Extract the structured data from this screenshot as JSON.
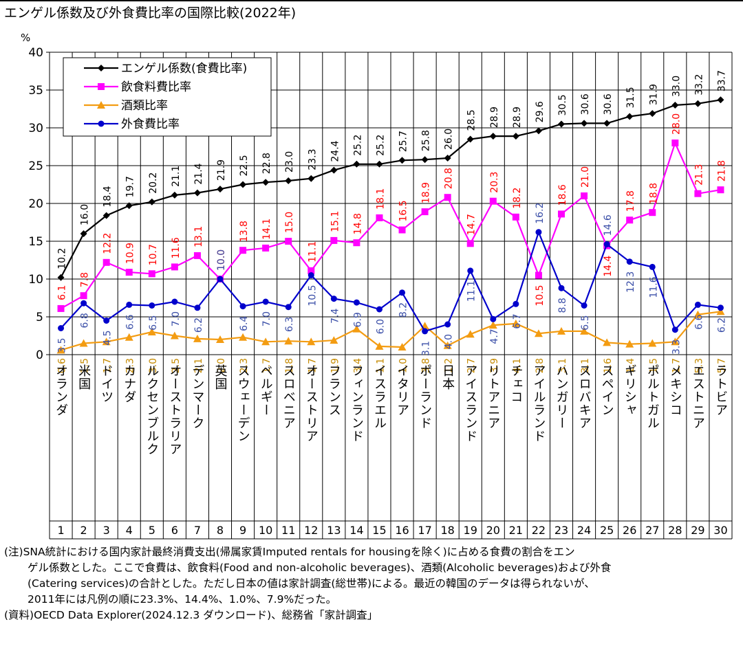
{
  "chart_data": {
    "type": "line",
    "title": "エンゲル係数及び外食費比率の国際比較(2022年)",
    "ylabel": "%",
    "ylim": [
      0,
      40
    ],
    "yticks": [
      0,
      5,
      10,
      15,
      20,
      25,
      30,
      35,
      40
    ],
    "grid": true,
    "legend_position": "top-left",
    "categories": [
      "オランダ",
      "米国",
      "ドイツ",
      "カナダ",
      "ルクセンブルク",
      "オーストラリア",
      "デンマーク",
      "英国",
      "スウェーデン",
      "ベルギー",
      "スロベニア",
      "オーストリア",
      "フランス",
      "フィンランド",
      "イスラエル",
      "イタリア",
      "ポーランド",
      "日本",
      "アイスランド",
      "リトアニア",
      "チェコ",
      "アイルランド",
      "ハンガリー",
      "スロバキア",
      "スペイン",
      "ギリシャ",
      "ポルトガル",
      "メキシコ",
      "エストニア",
      "ラトビア"
    ],
    "ranks": [
      "1",
      "2",
      "3",
      "4",
      "5",
      "6",
      "7",
      "8",
      "9",
      "10",
      "11",
      "12",
      "13",
      "14",
      "15",
      "16",
      "17",
      "18",
      "19",
      "20",
      "21",
      "22",
      "23",
      "24",
      "25",
      "26",
      "27",
      "28",
      "29",
      "30"
    ],
    "series": [
      {
        "name": "エンゲル係数(食費比率)",
        "color": "#000000",
        "marker": "diamond",
        "values": [
          10.2,
          16.0,
          18.4,
          19.7,
          20.2,
          21.1,
          21.4,
          21.9,
          22.5,
          22.8,
          23.0,
          23.3,
          24.4,
          25.2,
          25.2,
          25.7,
          25.8,
          26.0,
          28.5,
          28.9,
          28.9,
          29.6,
          30.5,
          30.6,
          30.6,
          31.5,
          31.9,
          33.0,
          33.2,
          33.7
        ],
        "labels": [
          "10.2",
          "16.0",
          "18.4",
          "19.7",
          "20.2",
          "21.1",
          "21.4",
          "21.9",
          "22.5",
          "22.8",
          "23.0",
          "23.3",
          "24.4",
          "25.2",
          "25.2",
          "25.7",
          "25.8",
          "26.0",
          "28.5",
          "28.9",
          "28.9",
          "29.6",
          "30.5",
          "30.6",
          "30.6",
          "31.5",
          "31.9",
          "33.0",
          "33.2",
          "33.7"
        ]
      },
      {
        "name": "飲食料費比率",
        "color": "#ff00ff",
        "label_color": "#ff0000",
        "marker": "square",
        "values": [
          6.1,
          7.8,
          12.2,
          10.9,
          10.7,
          11.6,
          13.1,
          10.0,
          13.8,
          14.1,
          15.0,
          11.1,
          15.1,
          14.8,
          18.1,
          16.5,
          18.9,
          20.8,
          14.7,
          20.3,
          18.2,
          10.5,
          18.6,
          21.0,
          14.4,
          17.8,
          18.8,
          28.0,
          21.3,
          21.8
        ],
        "labels": [
          "6.1",
          "7.8",
          "12.2",
          "10.9",
          "10.7",
          "11.6",
          "13.1",
          "10.0",
          "13.8",
          "14.1",
          "15.0",
          "11.1",
          "15.1",
          "14.8",
          "18.1",
          "16.5",
          "18.9",
          "20.8",
          "14.7",
          "20.3",
          "18.2",
          "10.5",
          "18.6",
          "21.0",
          "14.4",
          "17.8",
          "18.8",
          "28.0",
          "21.3",
          "21.8"
        ]
      },
      {
        "name": "酒類比率",
        "color": "#f39c12",
        "label_color": "#c58a00",
        "marker": "triangle",
        "values": [
          0.6,
          1.5,
          1.7,
          2.3,
          3.0,
          2.5,
          2.1,
          2.0,
          2.3,
          1.7,
          1.8,
          1.7,
          1.9,
          3.4,
          1.1,
          1.0,
          3.8,
          1.2,
          2.7,
          3.9,
          4.1,
          2.8,
          3.1,
          3.1,
          1.6,
          1.4,
          1.5,
          1.7,
          5.3,
          5.7
        ],
        "labels": [
          "0.6",
          "1.5",
          "1.7",
          "2.3",
          "3.0",
          "2.5",
          "2.1",
          "2.0",
          "2.3",
          "1.7",
          "1.8",
          "1.7",
          "1.9",
          "3.4",
          "1.1",
          "1.0",
          "3.8",
          "1.2",
          "2.7",
          "3.9",
          "4.1",
          "2.8",
          "3.1",
          "3.1",
          "1.6",
          "1.4",
          "1.5",
          "1.7",
          "5.3",
          "5.7"
        ]
      },
      {
        "name": "外食費比率",
        "color": "#0000cc",
        "label_color": "#3b4fa8",
        "marker": "circle",
        "values": [
          3.5,
          6.8,
          4.5,
          6.6,
          6.5,
          7.0,
          6.2,
          10.0,
          6.4,
          7.0,
          6.3,
          10.5,
          7.4,
          6.9,
          6.0,
          8.2,
          3.1,
          4.0,
          11.1,
          4.7,
          6.7,
          16.2,
          8.8,
          6.5,
          14.6,
          12.3,
          11.6,
          3.3,
          6.6,
          6.2
        ],
        "labels": [
          "3.5",
          "6.8",
          "4.5",
          "6.6",
          "6.5",
          "7.0",
          "6.2",
          "10.0",
          "6.4",
          "7.0",
          "6.3",
          "10.5",
          "7.4",
          "6.9",
          "6.0",
          "8.2",
          "3.1",
          "4.0",
          "11.1",
          "4.7",
          "6.7",
          "16.2",
          "8.8",
          "6.5",
          "14.6",
          "12.3",
          "11.6",
          "3.3",
          "6.6",
          "6.2"
        ]
      }
    ]
  },
  "notes": [
    "(注)SNA統計における国内家計最終消費支出(帰属家賃Imputed rentals for housingを除く)に占める食費の割合をエン",
    "ゲル係数とした。ここで食費は、飲食料(Food and non-alcoholic beverages)、酒類(Alcoholic beverages)および外食",
    "(Catering services)の合計とした。ただし日本の値は家計調査(総世帯)による。最近の韓国のデータは得られないが、",
    "2011年には凡例の順に23.3%、14.4%、1.0%、7.9%だった。",
    "(資料)OECD Data Explorer(2024.12.3 ダウンロード)、総務省「家計調査」"
  ]
}
